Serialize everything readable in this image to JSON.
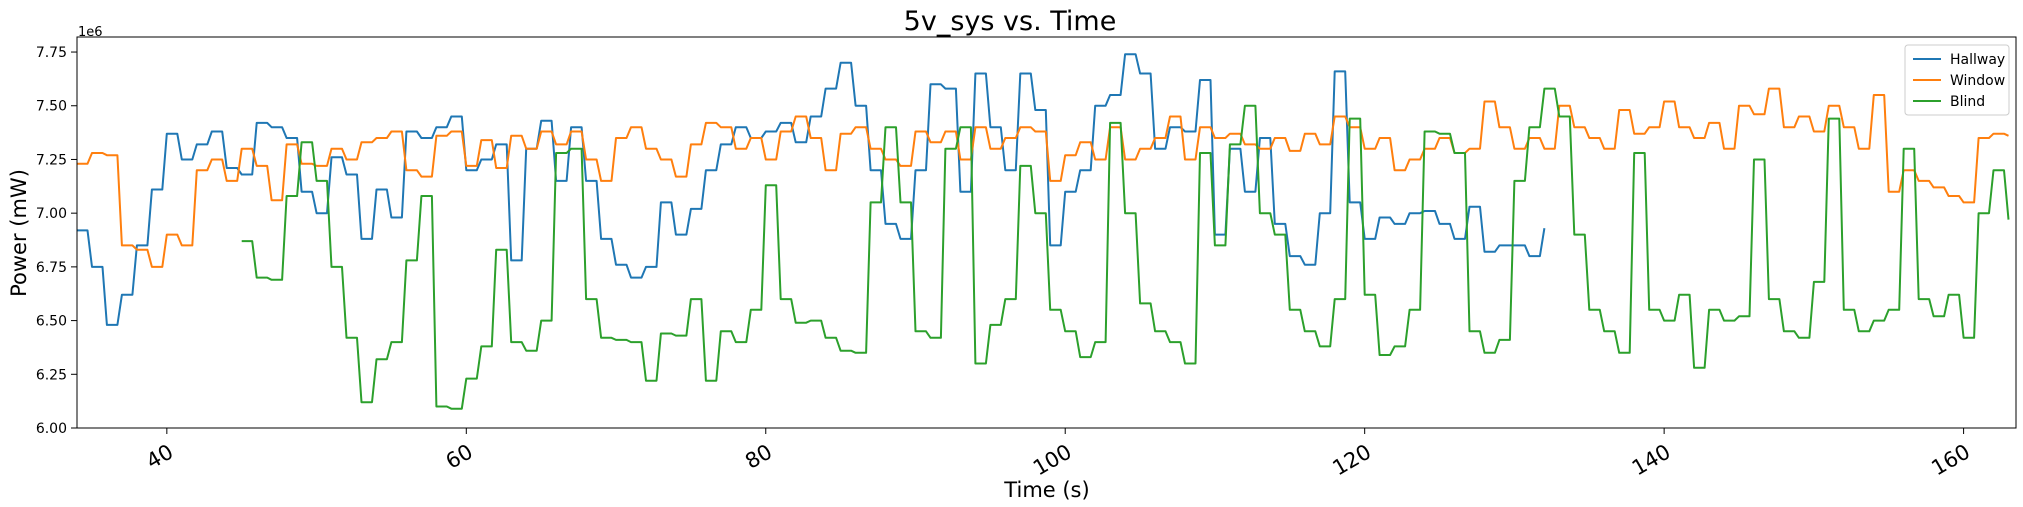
{
  "chart_data": {
    "type": "line",
    "title": "5v_sys vs. Time",
    "xlabel": "Time (s)",
    "ylabel": "Power (mW)",
    "y_offset_label": "1e6",
    "xlim": [
      34.0,
      163.5
    ],
    "ylim": [
      6000000,
      7820000
    ],
    "xticks": [
      40,
      60,
      80,
      100,
      120,
      140,
      160
    ],
    "xtick_rotation": 30,
    "yticks": [
      6000000,
      6250000,
      6500000,
      6750000,
      7000000,
      7250000,
      7500000,
      7750000
    ],
    "ytick_labels": [
      "6.00",
      "6.25",
      "6.50",
      "6.75",
      "7.00",
      "7.25",
      "7.50",
      "7.75"
    ],
    "grid": false,
    "legend_position": "top-right",
    "series": [
      {
        "name": "Hallway",
        "color": "#1f77b4",
        "x": [
          34,
          35,
          36,
          37,
          38,
          39,
          40,
          41,
          42,
          43,
          44,
          45,
          46,
          47,
          48,
          49,
          50,
          51,
          52,
          53,
          54,
          55,
          56,
          57,
          58,
          59,
          60,
          61,
          62,
          63,
          64,
          65,
          66,
          67,
          68,
          69,
          70,
          71,
          72,
          73,
          74,
          75,
          76,
          77,
          78,
          79,
          80,
          81,
          82,
          83,
          84,
          85,
          86,
          87,
          88,
          89,
          90,
          91,
          92,
          93,
          94,
          95,
          96,
          97,
          98,
          99,
          100,
          101,
          102,
          103,
          104,
          105,
          106,
          107,
          108,
          109,
          110,
          111,
          112,
          113,
          114,
          115,
          116,
          117,
          118,
          119,
          120,
          121,
          122,
          123,
          124,
          125,
          126,
          127,
          128,
          129,
          130,
          131,
          132
        ],
        "values": [
          6920000,
          6750000,
          6480000,
          6620000,
          6850000,
          7110000,
          7370000,
          7250000,
          7320000,
          7380000,
          7210000,
          7180000,
          7420000,
          7400000,
          7350000,
          7100000,
          7000000,
          7260000,
          7180000,
          6880000,
          7110000,
          6980000,
          7380000,
          7350000,
          7400000,
          7450000,
          7200000,
          7250000,
          7320000,
          6780000,
          7300000,
          7430000,
          7150000,
          7400000,
          7150000,
          6880000,
          6760000,
          6700000,
          6750000,
          7050000,
          6900000,
          7020000,
          7200000,
          7320000,
          7400000,
          7350000,
          7380000,
          7420000,
          7330000,
          7450000,
          7580000,
          7700000,
          7500000,
          7200000,
          6950000,
          6880000,
          7200000,
          7600000,
          7580000,
          7100000,
          7650000,
          7400000,
          7200000,
          7650000,
          7480000,
          6850000,
          7100000,
          7200000,
          7500000,
          7550000,
          7740000,
          7650000,
          7300000,
          7400000,
          7380000,
          7620000,
          6900000,
          7300000,
          7100000,
          7350000,
          6950000,
          6800000,
          6760000,
          7000000,
          7660000,
          7050000,
          6880000,
          6980000,
          6950000,
          7000000,
          7010000,
          6950000,
          6880000,
          7030000,
          6820000,
          6850000,
          6850000,
          6800000,
          6930000
        ]
      },
      {
        "name": "Window",
        "color": "#ff7f0e",
        "x": [
          34,
          35,
          36,
          37,
          38,
          39,
          40,
          41,
          42,
          43,
          44,
          45,
          46,
          47,
          48,
          49,
          50,
          51,
          52,
          53,
          54,
          55,
          56,
          57,
          58,
          59,
          60,
          61,
          62,
          63,
          64,
          65,
          66,
          67,
          68,
          69,
          70,
          71,
          72,
          73,
          74,
          75,
          76,
          77,
          78,
          79,
          80,
          81,
          82,
          83,
          84,
          85,
          86,
          87,
          88,
          89,
          90,
          91,
          92,
          93,
          94,
          95,
          96,
          97,
          98,
          99,
          100,
          101,
          102,
          103,
          104,
          105,
          106,
          107,
          108,
          109,
          110,
          111,
          112,
          113,
          114,
          115,
          116,
          117,
          118,
          119,
          120,
          121,
          122,
          123,
          124,
          125,
          126,
          127,
          128,
          129,
          130,
          131,
          132,
          133,
          134,
          135,
          136,
          137,
          138,
          139,
          140,
          141,
          142,
          143,
          144,
          145,
          146,
          147,
          148,
          149,
          150,
          151,
          152,
          153,
          154,
          155,
          156,
          157,
          158,
          159,
          160,
          161,
          162,
          163
        ],
        "values": [
          7230000,
          7280000,
          7270000,
          6850000,
          6830000,
          6750000,
          6900000,
          6850000,
          7200000,
          7250000,
          7150000,
          7300000,
          7220000,
          7060000,
          7320000,
          7230000,
          7220000,
          7300000,
          7250000,
          7330000,
          7350000,
          7380000,
          7200000,
          7170000,
          7360000,
          7380000,
          7220000,
          7340000,
          7210000,
          7360000,
          7300000,
          7380000,
          7320000,
          7380000,
          7250000,
          7150000,
          7350000,
          7400000,
          7300000,
          7250000,
          7170000,
          7320000,
          7420000,
          7400000,
          7300000,
          7350000,
          7250000,
          7380000,
          7450000,
          7350000,
          7200000,
          7370000,
          7400000,
          7300000,
          7250000,
          7220000,
          7380000,
          7330000,
          7380000,
          7250000,
          7400000,
          7300000,
          7350000,
          7400000,
          7380000,
          7150000,
          7270000,
          7330000,
          7250000,
          7400000,
          7250000,
          7300000,
          7350000,
          7450000,
          7250000,
          7400000,
          7350000,
          7370000,
          7320000,
          7300000,
          7350000,
          7290000,
          7370000,
          7320000,
          7450000,
          7400000,
          7300000,
          7350000,
          7200000,
          7250000,
          7300000,
          7350000,
          7280000,
          7300000,
          7520000,
          7400000,
          7300000,
          7350000,
          7300000,
          7500000,
          7400000,
          7350000,
          7300000,
          7480000,
          7370000,
          7400000,
          7520000,
          7400000,
          7350000,
          7420000,
          7300000,
          7500000,
          7460000,
          7580000,
          7400000,
          7450000,
          7380000,
          7500000,
          7400000,
          7300000,
          7550000,
          7100000,
          7200000,
          7150000,
          7120000,
          7080000,
          7050000,
          7350000,
          7370000,
          7360000
        ]
      },
      {
        "name": "Blind",
        "color": "#2ca02c",
        "x": [
          45,
          46,
          47,
          48,
          49,
          50,
          51,
          52,
          53,
          54,
          55,
          56,
          57,
          58,
          59,
          60,
          61,
          62,
          63,
          64,
          65,
          66,
          67,
          68,
          69,
          70,
          71,
          72,
          73,
          74,
          75,
          76,
          77,
          78,
          79,
          80,
          81,
          82,
          83,
          84,
          85,
          86,
          87,
          88,
          89,
          90,
          91,
          92,
          93,
          94,
          95,
          96,
          97,
          98,
          99,
          100,
          101,
          102,
          103,
          104,
          105,
          106,
          107,
          108,
          109,
          110,
          111,
          112,
          113,
          114,
          115,
          116,
          117,
          118,
          119,
          120,
          121,
          122,
          123,
          124,
          125,
          126,
          127,
          128,
          129,
          130,
          131,
          132,
          133,
          134,
          135,
          136,
          137,
          138,
          139,
          140,
          141,
          142,
          143,
          144,
          145,
          146,
          147,
          148,
          149,
          150,
          151,
          152,
          153,
          154,
          155,
          156,
          157,
          158,
          159,
          160,
          161,
          162,
          163
        ],
        "values": [
          6870000,
          6700000,
          6690000,
          7080000,
          7330000,
          7150000,
          6750000,
          6420000,
          6120000,
          6320000,
          6400000,
          6780000,
          7080000,
          6100000,
          6090000,
          6230000,
          6380000,
          6830000,
          6400000,
          6360000,
          6500000,
          7280000,
          7300000,
          6600000,
          6420000,
          6410000,
          6400000,
          6220000,
          6440000,
          6430000,
          6600000,
          6220000,
          6450000,
          6400000,
          6550000,
          7130000,
          6600000,
          6490000,
          6500000,
          6420000,
          6360000,
          6350000,
          7050000,
          7400000,
          7050000,
          6450000,
          6420000,
          7300000,
          7400000,
          6300000,
          6480000,
          6600000,
          7220000,
          7000000,
          6550000,
          6450000,
          6330000,
          6400000,
          7420000,
          7000000,
          6580000,
          6450000,
          6400000,
          6300000,
          7280000,
          6850000,
          7320000,
          7500000,
          7000000,
          6900000,
          6550000,
          6450000,
          6380000,
          6600000,
          7440000,
          6620000,
          6340000,
          6380000,
          6550000,
          7380000,
          7370000,
          7280000,
          6450000,
          6350000,
          6410000,
          7150000,
          7400000,
          7580000,
          7450000,
          6900000,
          6550000,
          6450000,
          6350000,
          7280000,
          6550000,
          6500000,
          6620000,
          6280000,
          6550000,
          6500000,
          6520000,
          7250000,
          6600000,
          6450000,
          6420000,
          6680000,
          7440000,
          6550000,
          6450000,
          6500000,
          6550000,
          7300000,
          6600000,
          6520000,
          6620000,
          6420000,
          7000000,
          7200000,
          6970000
        ]
      }
    ]
  }
}
